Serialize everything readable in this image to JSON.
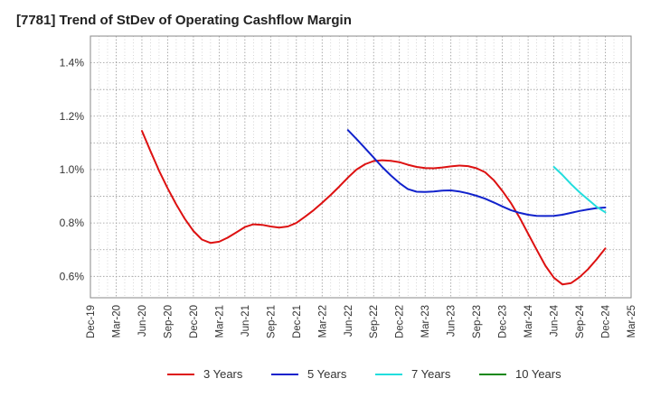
{
  "chart_data": {
    "type": "line",
    "title": "[7781]  Trend of StDev of Operating Cashflow Margin",
    "xlabel": "",
    "ylabel": "",
    "categories": [
      "Dec-19",
      "Mar-20",
      "Jun-20",
      "Sep-20",
      "Dec-20",
      "Mar-21",
      "Jun-21",
      "Sep-21",
      "Dec-21",
      "Mar-22",
      "Jun-22",
      "Sep-22",
      "Dec-22",
      "Mar-23",
      "Jun-23",
      "Sep-23",
      "Dec-23",
      "Mar-24",
      "Jun-24",
      "Sep-24",
      "Dec-24",
      "Mar-25"
    ],
    "y_ticks": [
      "0.6%",
      "0.8%",
      "1.0%",
      "1.2%",
      "1.4%"
    ],
    "y_tick_values": [
      0.6,
      0.8,
      1.0,
      1.2,
      1.4
    ],
    "ylim": [
      0.52,
      1.5
    ],
    "grid": true,
    "legend_position": "bottom",
    "series": [
      {
        "name": "3 Years",
        "color": "#dd1111",
        "points": [
          {
            "x": 2.0,
            "y": 1.145
          },
          {
            "x": 2.33,
            "y": 1.07
          },
          {
            "x": 2.67,
            "y": 0.995
          },
          {
            "x": 3.0,
            "y": 0.93
          },
          {
            "x": 3.33,
            "y": 0.87
          },
          {
            "x": 3.67,
            "y": 0.815
          },
          {
            "x": 4.0,
            "y": 0.77
          },
          {
            "x": 4.33,
            "y": 0.738
          },
          {
            "x": 4.67,
            "y": 0.725
          },
          {
            "x": 5.0,
            "y": 0.73
          },
          {
            "x": 5.33,
            "y": 0.745
          },
          {
            "x": 5.67,
            "y": 0.765
          },
          {
            "x": 6.0,
            "y": 0.785
          },
          {
            "x": 6.33,
            "y": 0.795
          },
          {
            "x": 6.67,
            "y": 0.793
          },
          {
            "x": 7.0,
            "y": 0.787
          },
          {
            "x": 7.33,
            "y": 0.783
          },
          {
            "x": 7.67,
            "y": 0.787
          },
          {
            "x": 8.0,
            "y": 0.8
          },
          {
            "x": 8.33,
            "y": 0.823
          },
          {
            "x": 8.67,
            "y": 0.848
          },
          {
            "x": 9.0,
            "y": 0.876
          },
          {
            "x": 9.33,
            "y": 0.905
          },
          {
            "x": 9.67,
            "y": 0.937
          },
          {
            "x": 10.0,
            "y": 0.97
          },
          {
            "x": 10.33,
            "y": 1.0
          },
          {
            "x": 10.67,
            "y": 1.02
          },
          {
            "x": 11.0,
            "y": 1.032
          },
          {
            "x": 11.33,
            "y": 1.035
          },
          {
            "x": 11.67,
            "y": 1.033
          },
          {
            "x": 12.0,
            "y": 1.028
          },
          {
            "x": 12.33,
            "y": 1.018
          },
          {
            "x": 12.67,
            "y": 1.01
          },
          {
            "x": 13.0,
            "y": 1.006
          },
          {
            "x": 13.33,
            "y": 1.005
          },
          {
            "x": 13.67,
            "y": 1.008
          },
          {
            "x": 14.0,
            "y": 1.012
          },
          {
            "x": 14.33,
            "y": 1.015
          },
          {
            "x": 14.67,
            "y": 1.013
          },
          {
            "x": 15.0,
            "y": 1.005
          },
          {
            "x": 15.33,
            "y": 0.99
          },
          {
            "x": 15.67,
            "y": 0.96
          },
          {
            "x": 16.0,
            "y": 0.92
          },
          {
            "x": 16.33,
            "y": 0.875
          },
          {
            "x": 16.67,
            "y": 0.82
          },
          {
            "x": 17.0,
            "y": 0.76
          },
          {
            "x": 17.33,
            "y": 0.7
          },
          {
            "x": 17.67,
            "y": 0.64
          },
          {
            "x": 18.0,
            "y": 0.595
          },
          {
            "x": 18.33,
            "y": 0.57
          },
          {
            "x": 18.67,
            "y": 0.575
          },
          {
            "x": 19.0,
            "y": 0.597
          },
          {
            "x": 19.33,
            "y": 0.627
          },
          {
            "x": 19.67,
            "y": 0.665
          },
          {
            "x": 20.0,
            "y": 0.705
          }
        ]
      },
      {
        "name": "5 Years",
        "color": "#1122cc",
        "points": [
          {
            "x": 10.0,
            "y": 1.148
          },
          {
            "x": 10.33,
            "y": 1.115
          },
          {
            "x": 10.67,
            "y": 1.08
          },
          {
            "x": 11.0,
            "y": 1.045
          },
          {
            "x": 11.33,
            "y": 1.01
          },
          {
            "x": 11.67,
            "y": 0.978
          },
          {
            "x": 12.0,
            "y": 0.95
          },
          {
            "x": 12.33,
            "y": 0.927
          },
          {
            "x": 12.67,
            "y": 0.917
          },
          {
            "x": 13.0,
            "y": 0.916
          },
          {
            "x": 13.33,
            "y": 0.918
          },
          {
            "x": 13.67,
            "y": 0.921
          },
          {
            "x": 14.0,
            "y": 0.922
          },
          {
            "x": 14.33,
            "y": 0.918
          },
          {
            "x": 14.67,
            "y": 0.911
          },
          {
            "x": 15.0,
            "y": 0.902
          },
          {
            "x": 15.33,
            "y": 0.891
          },
          {
            "x": 15.67,
            "y": 0.877
          },
          {
            "x": 16.0,
            "y": 0.862
          },
          {
            "x": 16.33,
            "y": 0.848
          },
          {
            "x": 16.67,
            "y": 0.838
          },
          {
            "x": 17.0,
            "y": 0.831
          },
          {
            "x": 17.33,
            "y": 0.827
          },
          {
            "x": 17.67,
            "y": 0.826
          },
          {
            "x": 18.0,
            "y": 0.827
          },
          {
            "x": 18.33,
            "y": 0.831
          },
          {
            "x": 18.67,
            "y": 0.838
          },
          {
            "x": 19.0,
            "y": 0.845
          },
          {
            "x": 19.33,
            "y": 0.851
          },
          {
            "x": 19.67,
            "y": 0.856
          },
          {
            "x": 20.0,
            "y": 0.858
          }
        ]
      },
      {
        "name": "7 Years",
        "color": "#22dddd",
        "points": [
          {
            "x": 18.0,
            "y": 1.01
          },
          {
            "x": 18.33,
            "y": 0.98
          },
          {
            "x": 18.67,
            "y": 0.945
          },
          {
            "x": 19.0,
            "y": 0.915
          },
          {
            "x": 19.33,
            "y": 0.888
          },
          {
            "x": 19.67,
            "y": 0.86
          },
          {
            "x": 20.0,
            "y": 0.84
          }
        ]
      },
      {
        "name": "10 Years",
        "color": "#118811",
        "points": []
      }
    ]
  }
}
